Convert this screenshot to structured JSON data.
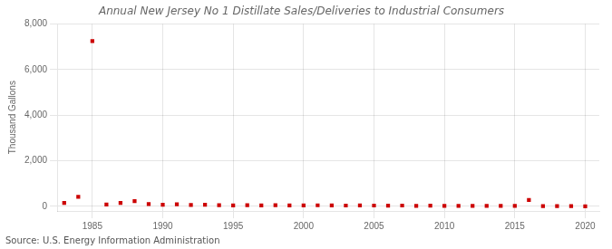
{
  "chart_data": {
    "type": "scatter",
    "title": "Annual New Jersey No 1 Distillate Sales/Deliveries to Industrial Consumers",
    "ylabel": "Thousand Gallons",
    "annotation": "Source: U.S. Energy Information Administration",
    "x": [
      1983,
      1984,
      1985,
      1986,
      1987,
      1988,
      1989,
      1990,
      1991,
      1992,
      1993,
      1994,
      1995,
      1996,
      1997,
      1998,
      1999,
      2000,
      2001,
      2002,
      2003,
      2004,
      2005,
      2006,
      2007,
      2008,
      2009,
      2010,
      2011,
      2012,
      2013,
      2014,
      2015,
      2016,
      2017,
      2018,
      2019,
      2020
    ],
    "values": [
      150,
      420,
      7250,
      80,
      150,
      230,
      100,
      70,
      90,
      60,
      75,
      55,
      45,
      55,
      45,
      50,
      45,
      40,
      48,
      42,
      38,
      45,
      38,
      32,
      38,
      28,
      32,
      28,
      28,
      22,
      22,
      28,
      22,
      280,
      18,
      18,
      12,
      8
    ],
    "color": "#cc0000",
    "marker": "square",
    "xlim": [
      1982.5,
      2021
    ],
    "ylim": [
      -200,
      8000
    ],
    "xticks": [
      1985,
      1990,
      1995,
      2000,
      2005,
      2010,
      2015,
      2020
    ],
    "yticks": [
      0,
      {
        "value": 2000,
        "label": "2,000"
      },
      {
        "value": 4000,
        "label": "4,000"
      },
      {
        "value": 6000,
        "label": "6,000"
      },
      {
        "value": 8000,
        "label": "8,000"
      }
    ],
    "grid": true
  }
}
